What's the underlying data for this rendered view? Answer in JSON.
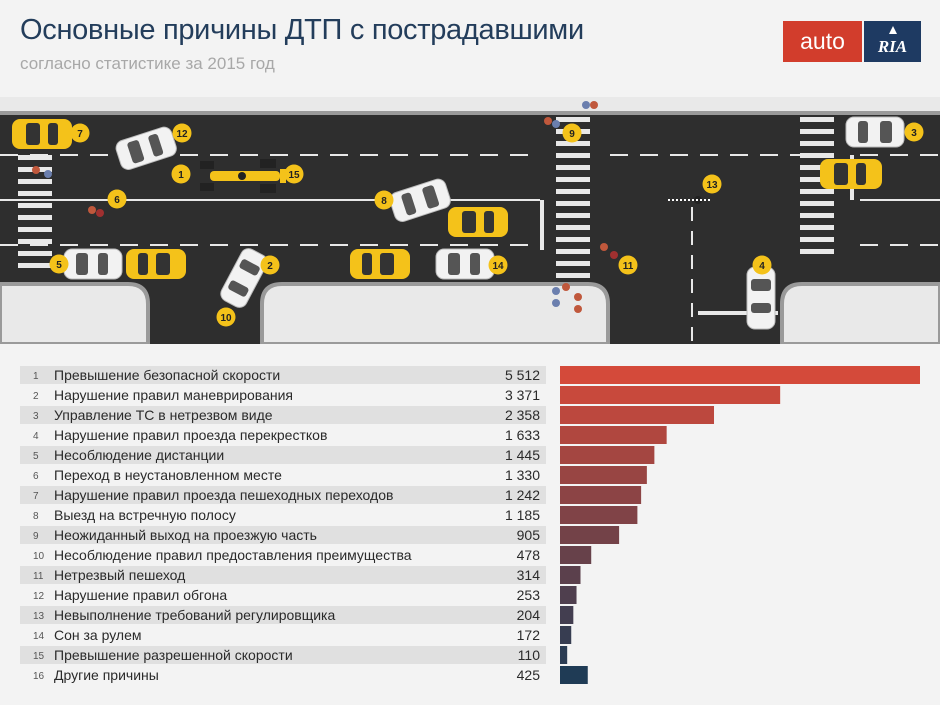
{
  "header": {
    "title": "Основные причины ДТП с пострадавшими",
    "subtitle": "согласно статистике за 2015 год",
    "logo_auto": "auto",
    "logo_ria": "RIA"
  },
  "colors": {
    "bar_top": "#d44a3a",
    "bar_bottom": "#1f3b55",
    "row_bg": "#e0e0e0",
    "road": "#2e2e2e",
    "taxi": "#f4c21a"
  },
  "chart_data": {
    "type": "bar",
    "orientation": "horizontal",
    "title": "Основные причины ДТП с пострадавшими",
    "subtitle": "согласно статистике за 2015 год",
    "xlim": [
      0,
      5512
    ],
    "numbers": [
      "1",
      "2",
      "3",
      "4",
      "5",
      "6",
      "7",
      "8",
      "9",
      "10",
      "11",
      "12",
      "13",
      "14",
      "15",
      "16"
    ],
    "categories": [
      "Превышение безопасной скорости",
      "Нарушение правил маневрирования",
      "Управление ТС в нетрезвом виде",
      "Нарушение правил проезда перекрестков",
      "Несоблюдение дистанции",
      "Переход в неустановленном месте",
      "Нарушение правил проезда пешеходных переходов",
      "Выезд на встречную полосу",
      "Неожиданный выход на проезжую часть",
      "Несоблюдение правил предоставления преимущества",
      "Нетрезвый пешеход",
      "Нарушение правил обгона",
      "Невыполнение требований регулировщика",
      "Сон за рулем",
      "Превышение разрешенной скорости",
      "Другие причины"
    ],
    "values": [
      5512,
      3371,
      2358,
      1633,
      1445,
      1330,
      1242,
      1185,
      905,
      478,
      314,
      253,
      204,
      172,
      110,
      425
    ],
    "value_labels": [
      "5 512",
      "3 371",
      "2 358",
      "1 633",
      "1 445",
      "1 330",
      "1 242",
      "1 185",
      "905",
      "478",
      "314",
      "253",
      "204",
      "172",
      "110",
      "425"
    ]
  },
  "illustration": {
    "markers": [
      "1",
      "2",
      "3",
      "4",
      "5",
      "6",
      "7",
      "8",
      "9",
      "10",
      "11",
      "12",
      "13",
      "14",
      "15"
    ]
  }
}
